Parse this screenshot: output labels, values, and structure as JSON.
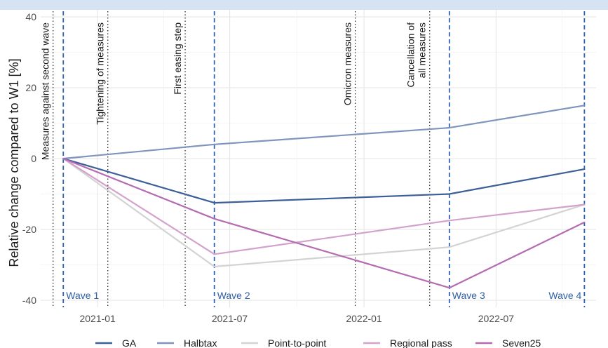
{
  "chart_data": {
    "type": "line",
    "title": "",
    "xlabel": "",
    "ylabel": "Relative change compared to W1 [%]",
    "ylim": [
      -42,
      42
    ],
    "yticks": [
      -40,
      -20,
      0,
      20,
      40
    ],
    "ytick_labels": [
      "-40",
      "-20",
      "0",
      "20",
      "40"
    ],
    "xticks": [
      "2021-01-01",
      "2021-07-01",
      "2022-01-01",
      "2022-07-01"
    ],
    "xtick_labels": [
      "2021-01",
      "2021-07",
      "2022-01",
      "2022-07"
    ],
    "xlim": [
      "2020-10-15",
      "2022-11-15"
    ],
    "grid": true,
    "legend_position": "bottom",
    "x": [
      "2020-11-15",
      "2021-06-10",
      "2022-04-28",
      "2022-10-30"
    ],
    "series": [
      {
        "name": "GA",
        "color": "#3d5f98",
        "values": [
          0,
          -12.5,
          -10,
          -3
        ]
      },
      {
        "name": "Halbtax",
        "color": "#7f95bd",
        "values": [
          0,
          4,
          8.7,
          15
        ]
      },
      {
        "name": "Point-to-point",
        "color": "#d3d3d3",
        "values": [
          0,
          -30.5,
          -25,
          -13
        ]
      },
      {
        "name": "Regional pass",
        "color": "#d3a2cc",
        "values": [
          0,
          -27,
          -17.5,
          -13
        ]
      },
      {
        "name": "Seven25",
        "color": "#b56bb1",
        "values": [
          0,
          -17,
          -36.5,
          -18
        ]
      }
    ],
    "waves": [
      {
        "label": "Wave 1",
        "date": "2020-11-15"
      },
      {
        "label": "Wave 2",
        "date": "2021-06-10"
      },
      {
        "label": "Wave 3",
        "date": "2022-04-28"
      },
      {
        "label": "Wave 4",
        "date": "2022-10-30"
      }
    ],
    "events": [
      {
        "label": "Measures against second wave",
        "date": "2020-11-01"
      },
      {
        "label": "Tightening of measures",
        "date": "2021-01-15"
      },
      {
        "label": "First easing step",
        "date": "2021-05-01"
      },
      {
        "label": "Omicron measures",
        "date": "2021-12-20"
      },
      {
        "label": "Cancellation of\nall measures",
        "date": "2022-04-01"
      }
    ]
  }
}
